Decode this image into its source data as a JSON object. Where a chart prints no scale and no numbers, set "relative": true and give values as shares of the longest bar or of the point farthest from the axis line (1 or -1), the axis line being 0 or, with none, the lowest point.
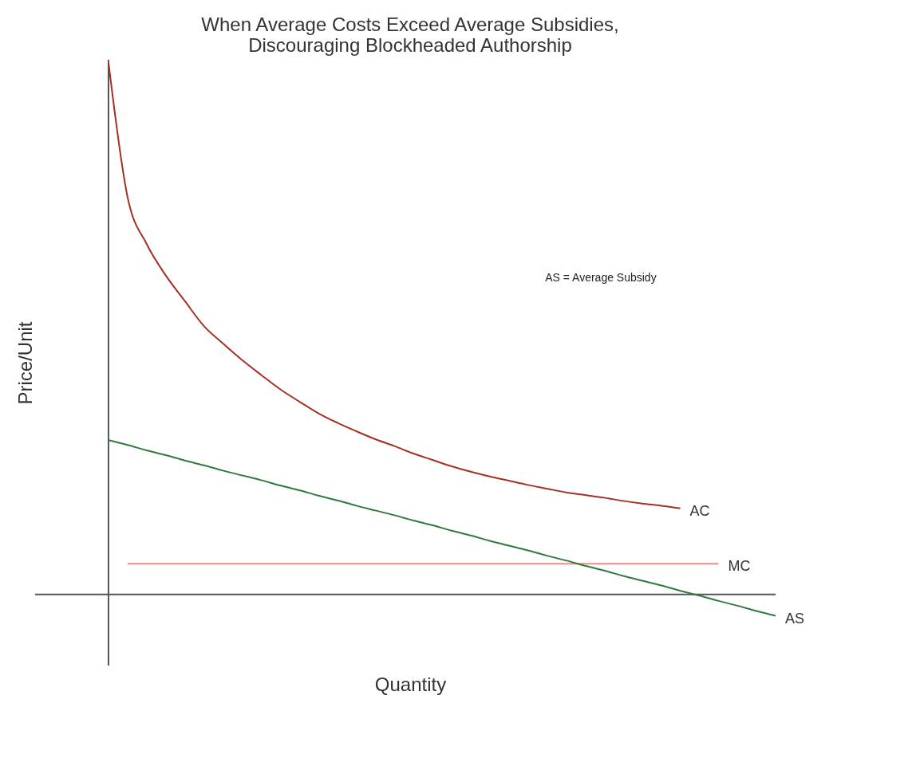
{
  "chart_data": {
    "type": "line",
    "title": "When Average Costs Exceed Average Subsidies,\nDiscouraging Blockheaded Authorship",
    "xlabel": "Quantity",
    "ylabel": "Price/Unit",
    "relative": true,
    "grid": false,
    "line_style": "solid",
    "marker": "none",
    "categories": [
      null,
      null,
      null,
      null,
      null,
      null,
      null,
      null,
      null,
      null,
      null,
      null,
      null,
      null,
      null,
      null,
      null,
      null,
      null,
      null,
      null,
      null,
      null,
      null,
      null,
      null,
      null,
      null,
      null,
      null,
      null,
      null,
      null,
      null,
      null,
      null
    ],
    "series": [
      {
        "name": "AC",
        "color": "#a33222",
        "values": [
          1.0,
          0.747,
          0.659,
          0.6,
          0.552,
          0.505,
          0.472,
          0.441,
          0.413,
          0.386,
          0.363,
          0.341,
          0.323,
          0.307,
          0.292,
          0.279,
          0.265,
          0.253,
          0.241,
          0.231,
          0.222,
          0.214,
          0.206,
          0.199,
          0.192,
          0.187,
          0.182,
          0.176,
          0.171,
          0.167,
          0.162,
          null,
          null,
          null,
          null,
          null
        ]
      },
      {
        "name": "MC",
        "color": "#f28b85",
        "values": [
          null,
          0.058,
          0.058,
          0.058,
          0.058,
          0.058,
          0.058,
          0.058,
          0.058,
          0.058,
          0.058,
          0.058,
          0.058,
          0.058,
          0.058,
          0.058,
          0.058,
          0.058,
          0.058,
          0.058,
          0.058,
          0.058,
          0.058,
          0.058,
          0.058,
          0.058,
          0.058,
          0.058,
          0.058,
          0.058,
          0.058,
          0.058,
          0.058,
          null,
          null,
          null
        ]
      },
      {
        "name": "AS",
        "color": "#2f7a3f",
        "values": [
          0.29,
          0.281,
          0.271,
          0.262,
          0.252,
          0.243,
          0.233,
          0.224,
          0.215,
          0.205,
          0.196,
          0.186,
          0.177,
          0.167,
          0.158,
          0.149,
          0.139,
          0.13,
          0.12,
          0.111,
          0.101,
          0.092,
          0.083,
          0.073,
          0.064,
          0.054,
          0.045,
          0.035,
          0.026,
          0.017,
          0.007,
          -0.002,
          -0.012,
          -0.021,
          -0.031,
          -0.04
        ]
      }
    ],
    "annotations": [
      "AS = Average Subsidy"
    ]
  }
}
